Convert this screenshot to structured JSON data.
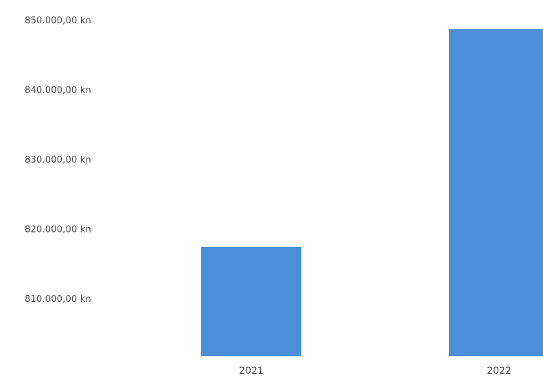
{
  "chart_data": {
    "type": "bar",
    "title": "",
    "xlabel": "",
    "ylabel": "",
    "categories": [
      "2021",
      "2022"
    ],
    "values": [
      817500,
      848800
    ],
    "y_ticks": [
      810000,
      820000,
      830000,
      840000,
      850000
    ],
    "y_tick_labels": [
      "810.000,00 kn",
      "820.000,00 kn",
      "830.000,00 kn",
      "840.000,00 kn",
      "850.000,00 kn"
    ],
    "ylim": [
      802000,
      850000
    ],
    "grid": false,
    "legend": "none",
    "bar_color": "#4a90d9"
  }
}
